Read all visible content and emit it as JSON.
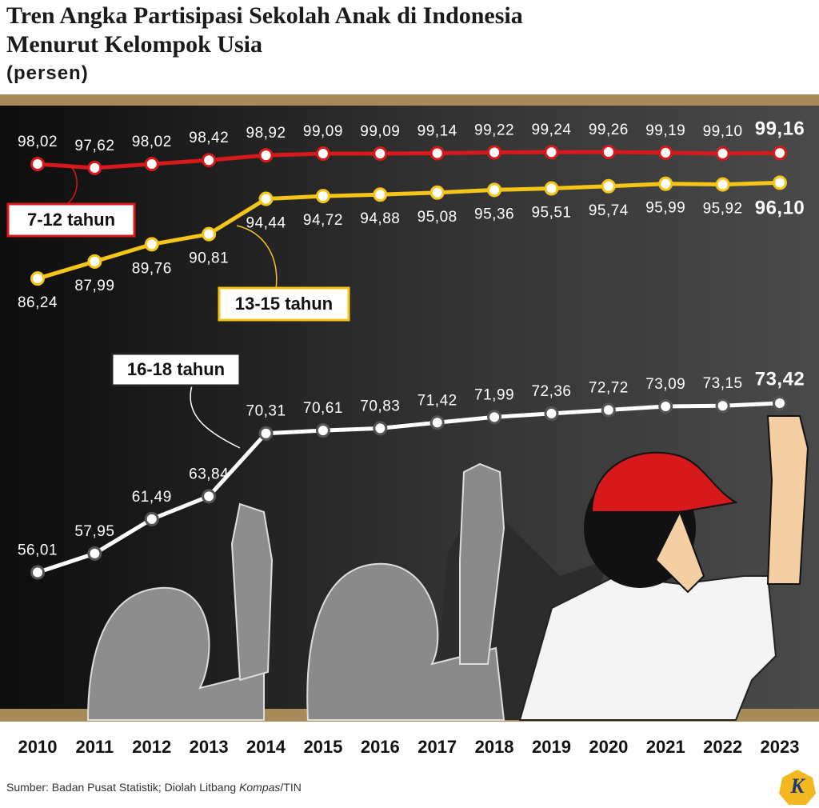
{
  "chart_data": {
    "type": "line",
    "title": "Tren Angka Partisipasi Sekolah Anak di Indonesia Menurut Kelompok Usia",
    "subtitle": "(persen)",
    "categories": [
      "2010",
      "2011",
      "2012",
      "2013",
      "2014",
      "2015",
      "2016",
      "2017",
      "2018",
      "2019",
      "2020",
      "2021",
      "2022",
      "2023"
    ],
    "series": [
      {
        "name": "7-12 tahun",
        "color": "#d7191c",
        "values": [
          98.02,
          97.62,
          98.02,
          98.42,
          98.92,
          99.09,
          99.09,
          99.14,
          99.22,
          99.24,
          99.26,
          99.19,
          99.1,
          99.16
        ],
        "value_labels": [
          "98,02",
          "97,62",
          "98,02",
          "98,42",
          "98,92",
          "99,09",
          "99,09",
          "99,14",
          "99,22",
          "99,24",
          "99,26",
          "99,19",
          "99,10",
          "99,16"
        ]
      },
      {
        "name": "13-15 tahun",
        "color": "#f5c518",
        "values": [
          86.24,
          87.99,
          89.76,
          90.81,
          94.44,
          94.72,
          94.88,
          95.08,
          95.36,
          95.51,
          95.74,
          95.99,
          95.92,
          96.1
        ],
        "value_labels": [
          "86,24",
          "87,99",
          "89,76",
          "90,81",
          "94,44",
          "94,72",
          "94,88",
          "95,08",
          "95,36",
          "95,51",
          "95,74",
          "95,99",
          "95,92",
          "96,10"
        ]
      },
      {
        "name": "16-18 tahun",
        "color": "#ffffff",
        "values": [
          56.01,
          57.95,
          61.49,
          63.84,
          70.31,
          70.61,
          70.83,
          71.42,
          71.99,
          72.36,
          72.72,
          73.09,
          73.15,
          73.42
        ],
        "value_labels": [
          "56,01",
          "57,95",
          "61,49",
          "63,84",
          "70,31",
          "70,61",
          "70,83",
          "71,42",
          "71,99",
          "72,36",
          "72,72",
          "73,09",
          "73,15",
          "73,42"
        ]
      }
    ],
    "source": [
      "Sumber: Badan Pusat Statistik; Diolah Litbang ",
      "Kompas",
      "/TIN"
    ],
    "logo": "K"
  }
}
